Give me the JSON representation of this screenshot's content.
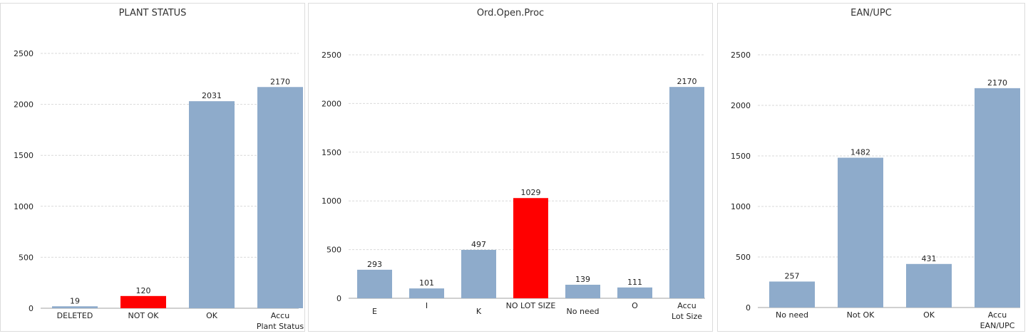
{
  "colors": {
    "bar": "#8eabcb",
    "highlight": "#ff0000",
    "grid": "#d9d9d9",
    "axis": "#a0a0a0",
    "text": "#222222"
  },
  "chart_data": [
    {
      "type": "bar",
      "title": "PLANT STATUS",
      "categories": [
        [
          "DELETED"
        ],
        [
          "NOT OK"
        ],
        [
          "OK"
        ],
        [
          "Accu",
          "Plant Status"
        ]
      ],
      "values": [
        19,
        120,
        2031,
        2170
      ],
      "highlight": [
        false,
        true,
        false,
        false
      ],
      "ylim": [
        0,
        2500
      ],
      "yticks": [
        0,
        500,
        1000,
        1500,
        2000,
        2500
      ],
      "grid": true
    },
    {
      "type": "bar",
      "title": "Ord.Open.Proc",
      "categories": [
        [
          "E"
        ],
        [
          "I"
        ],
        [
          "K"
        ],
        [
          "NO LOT SIZE"
        ],
        [
          "No need"
        ],
        [
          "O"
        ],
        [
          "Accu",
          "Lot Size"
        ]
      ],
      "values": [
        293,
        101,
        497,
        1029,
        139,
        111,
        2170
      ],
      "highlight": [
        false,
        false,
        false,
        true,
        false,
        false,
        false
      ],
      "ylim": [
        0,
        2500
      ],
      "yticks": [
        0,
        500,
        1000,
        1500,
        2000,
        2500
      ],
      "grid": true
    },
    {
      "type": "bar",
      "title": "EAN/UPC",
      "categories": [
        [
          "No need"
        ],
        [
          "Not OK"
        ],
        [
          "OK"
        ],
        [
          "Accu",
          "EAN/UPC"
        ]
      ],
      "values": [
        257,
        1482,
        431,
        2170
      ],
      "highlight": [
        false,
        false,
        false,
        false
      ],
      "ylim": [
        0,
        2500
      ],
      "yticks": [
        0,
        500,
        1000,
        1500,
        2000,
        2500
      ],
      "grid": true
    }
  ]
}
